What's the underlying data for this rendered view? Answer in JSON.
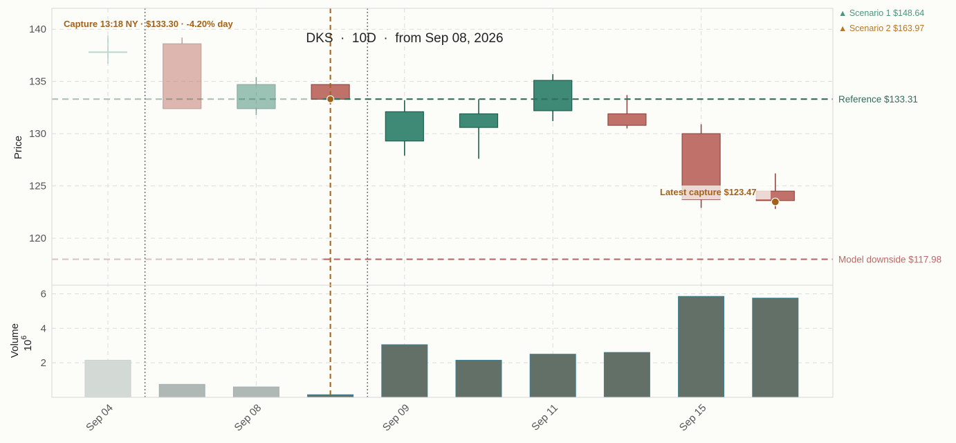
{
  "chart_data": {
    "type": "candlestick",
    "title": "DKS  ·  10D  ·  from Sep 08, 2026",
    "price_axis": {
      "label": "Price",
      "ylim": [
        115.5,
        142
      ],
      "ticks": [
        120,
        125,
        130,
        135,
        140
      ]
    },
    "volume_axis": {
      "label": "Volume",
      "multiplier": "10",
      "multiplier_exp": "6",
      "ylim": [
        0,
        6.5
      ],
      "ticks": [
        2,
        4,
        6
      ]
    },
    "x_tick_labels": [
      {
        "label": "Sep 04",
        "index": 0
      },
      {
        "label": "Sep 08",
        "index": 2
      },
      {
        "label": "Sep 09",
        "index": 4
      },
      {
        "label": "Sep 11",
        "index": 6
      },
      {
        "label": "Sep 15",
        "index": 8
      }
    ],
    "candles": [
      {
        "open": 137.8,
        "high": 139.4,
        "low": 136.7,
        "close": 137.8,
        "volume": 2.15,
        "faded": true
      },
      {
        "open": 138.6,
        "high": 139.2,
        "low": 132.4,
        "close": 132.4,
        "volume": 0.75,
        "faded": true
      },
      {
        "open": 132.4,
        "high": 135.4,
        "low": 131.8,
        "close": 134.7,
        "volume": 0.6,
        "faded": true
      },
      {
        "open": 134.7,
        "high": 134.7,
        "low": 133.3,
        "close": 133.3,
        "volume": 0.15,
        "faded": false
      },
      {
        "open": 129.3,
        "high": 133.2,
        "low": 127.9,
        "close": 132.1,
        "volume": 3.05,
        "faded": false
      },
      {
        "open": 130.6,
        "high": 133.3,
        "low": 127.6,
        "close": 131.9,
        "volume": 2.15,
        "faded": false
      },
      {
        "open": 132.2,
        "high": 135.7,
        "low": 131.2,
        "close": 135.1,
        "volume": 2.5,
        "faded": false
      },
      {
        "open": 131.9,
        "high": 133.7,
        "low": 130.5,
        "close": 130.8,
        "volume": 2.6,
        "faded": false
      },
      {
        "open": 130.0,
        "high": 130.9,
        "low": 122.9,
        "close": 123.7,
        "volume": 5.85,
        "faded": false
      },
      {
        "open": 124.5,
        "high": 126.2,
        "low": 122.8,
        "close": 123.6,
        "volume": 5.75,
        "faded": false
      }
    ],
    "reference_lines": [
      {
        "label": "Reference $133.31",
        "value": 133.31,
        "color": "#2e6e5e"
      },
      {
        "label": "Model downside $117.98",
        "value": 117.98,
        "color": "#b86a64"
      }
    ],
    "capture_markers": [
      {
        "label": "Capture 13:18 NY · $133.30 · -4.20% day",
        "index": 3,
        "value": 133.3
      },
      {
        "label": "Latest capture $123.47",
        "index": 9,
        "value": 123.47
      }
    ],
    "session_separators": [
      0.5,
      3.5
    ],
    "legend": {
      "placement": "top-right",
      "items": [
        {
          "label": "▲ Scenario 1 $148.64",
          "color": "#4b9682"
        },
        {
          "label": "▲ Scenario 2 $163.97",
          "color": "#b3782a"
        }
      ]
    },
    "colors": {
      "up": "#3e8a76",
      "up_edge": "#1f5e4e",
      "down": "#c0726a",
      "down_edge": "#8f4a44",
      "volume": "#627068",
      "volume_edge": "#3a7f8f",
      "marker": "#a3621a",
      "grid": "#dddddd"
    },
    "grid": true
  }
}
